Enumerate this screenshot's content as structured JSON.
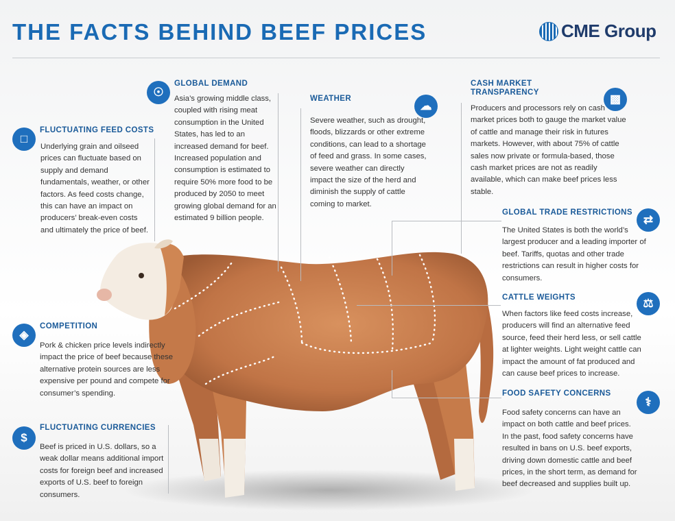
{
  "header": {
    "title": "THE FACTS BEHIND BEEF PRICES",
    "logo": "CME Group"
  },
  "colors": {
    "accent": "#1f6fbd",
    "heading": "#1a5a99",
    "title": "#1a6ab4"
  },
  "sections": {
    "feed": {
      "icon": "feed-bag-icon",
      "title": "FLUCTUATING FEED COSTS",
      "body": "Underlying grain and oilseed prices can fluctuate based on supply and demand fundamentals, weather, or other factors. As feed costs change, this can have an impact on producers’ break-even costs and ultimately the price of beef."
    },
    "global_demand": {
      "icon": "globe-icon",
      "title": "GLOBAL DEMAND",
      "body": "Asia’s growing middle class, coupled with rising meat consumption in the United States, has led to an increased demand for beef. Increased population and consumption is estimated to require 50% more food to be produced by 2050 to meet growing global demand for an estimated 9 billion people."
    },
    "weather": {
      "icon": "rain-cloud-icon",
      "title": "WEATHER",
      "body": "Severe weather, such as drought, floods, blizzards or other extreme conditions, can lead to a shortage of feed and grass. In some cases, severe weather can directly impact the size of the herd and diminish the supply of cattle coming to market."
    },
    "cash_market": {
      "icon": "bar-chart-icon",
      "title": "CASH MARKET TRANSPARENCY",
      "body": "Producers and processors rely on cash market prices both to gauge the market value of cattle and manage their risk in futures markets.  However, with about 75% of cattle sales now private or formula-based, those cash market prices are not as readily available, which can make beef prices less stable."
    },
    "trade": {
      "icon": "exchange-arrows-icon",
      "title": "GLOBAL TRADE RESTRICTIONS",
      "body": "The United States is both the world’s largest producer and a leading importer of beef. Tariffs, quotas and other trade restrictions can result in higher costs for consumers."
    },
    "weights": {
      "icon": "scale-icon",
      "title": "CATTLE WEIGHTS",
      "body": "When factors like feed costs increase, producers will find an alternative feed source, feed their herd less, or sell cattle at lighter weights. Light weight cattle can impact the amount of fat produced and can cause beef prices to increase."
    },
    "competition": {
      "icon": "livestock-icon",
      "title": "COMPETITION",
      "body": "Pork & chicken price levels indirectly impact the price of beef because these alternative protein sources are less expensive per pound and compete for consumer’s spending."
    },
    "currencies": {
      "icon": "dollar-icon",
      "title": "FLUCTUATING CURRENCIES",
      "body": "Beef is priced in U.S. dollars, so a weak dollar means additional import costs for foreign beef and increased exports of U.S. beef to foreign consumers."
    },
    "food_safety": {
      "icon": "caduceus-icon",
      "title": "FOOD SAFETY CONCERNS",
      "body": "Food safety concerns can have an impact on both cattle and beef prices. In the past, food safety concerns have resulted in bans on U.S. beef exports, driving down domestic cattle and beef prices, in the short term, as demand for beef decreased and supplies built up."
    }
  }
}
